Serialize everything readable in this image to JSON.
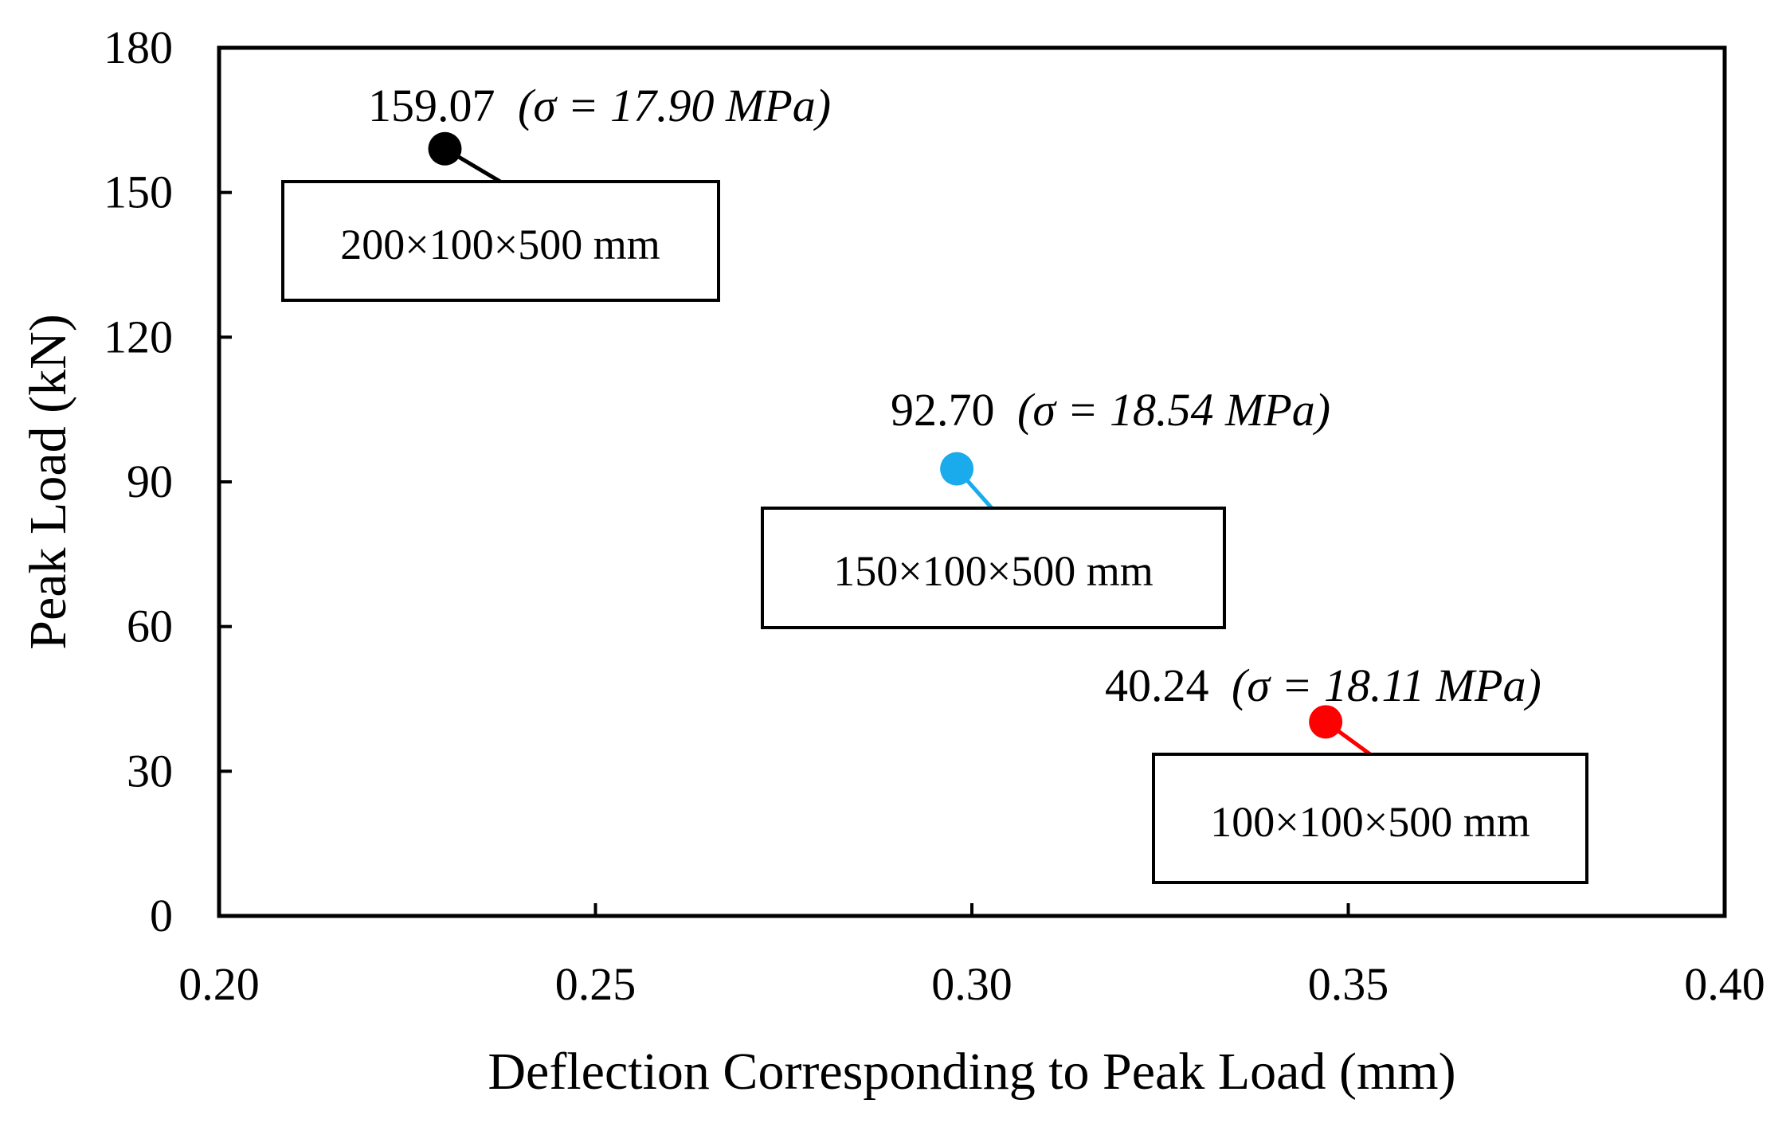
{
  "chart_data": {
    "type": "scatter",
    "title": "",
    "xlabel": "Deflection Corresponding to Peak Load (mm)",
    "ylabel": "Peak Load (kN)",
    "xlim": [
      0.2,
      0.4
    ],
    "ylim": [
      0,
      180
    ],
    "grid": false,
    "x_ticks": [
      "0.20",
      "0.25",
      "0.30",
      "0.35",
      "0.40"
    ],
    "y_ticks": [
      "0",
      "30",
      "60",
      "90",
      "120",
      "150",
      "180"
    ],
    "points": [
      {
        "name": "200×100×500 mm",
        "x": 0.23,
        "y": 159.07,
        "color": "#000000",
        "label": "159.07 (σ = 17.90 MPa)",
        "value_text": "159.07",
        "sigma_text": "(σ = 17.90 MPa)"
      },
      {
        "name": "150×100×500 mm",
        "x": 0.298,
        "y": 92.7,
        "color": "#1AABEC",
        "label": "92.70 (σ = 18.54 MPa)",
        "value_text": "92.70",
        "sigma_text": "(σ = 18.54 MPa)"
      },
      {
        "name": "100×100×500 mm",
        "x": 0.347,
        "y": 40.24,
        "color": "#FF0000",
        "label": "40.24 (σ = 18.11 MPa)",
        "value_text": "40.24",
        "sigma_text": "(σ = 18.11 MPa)"
      }
    ]
  }
}
